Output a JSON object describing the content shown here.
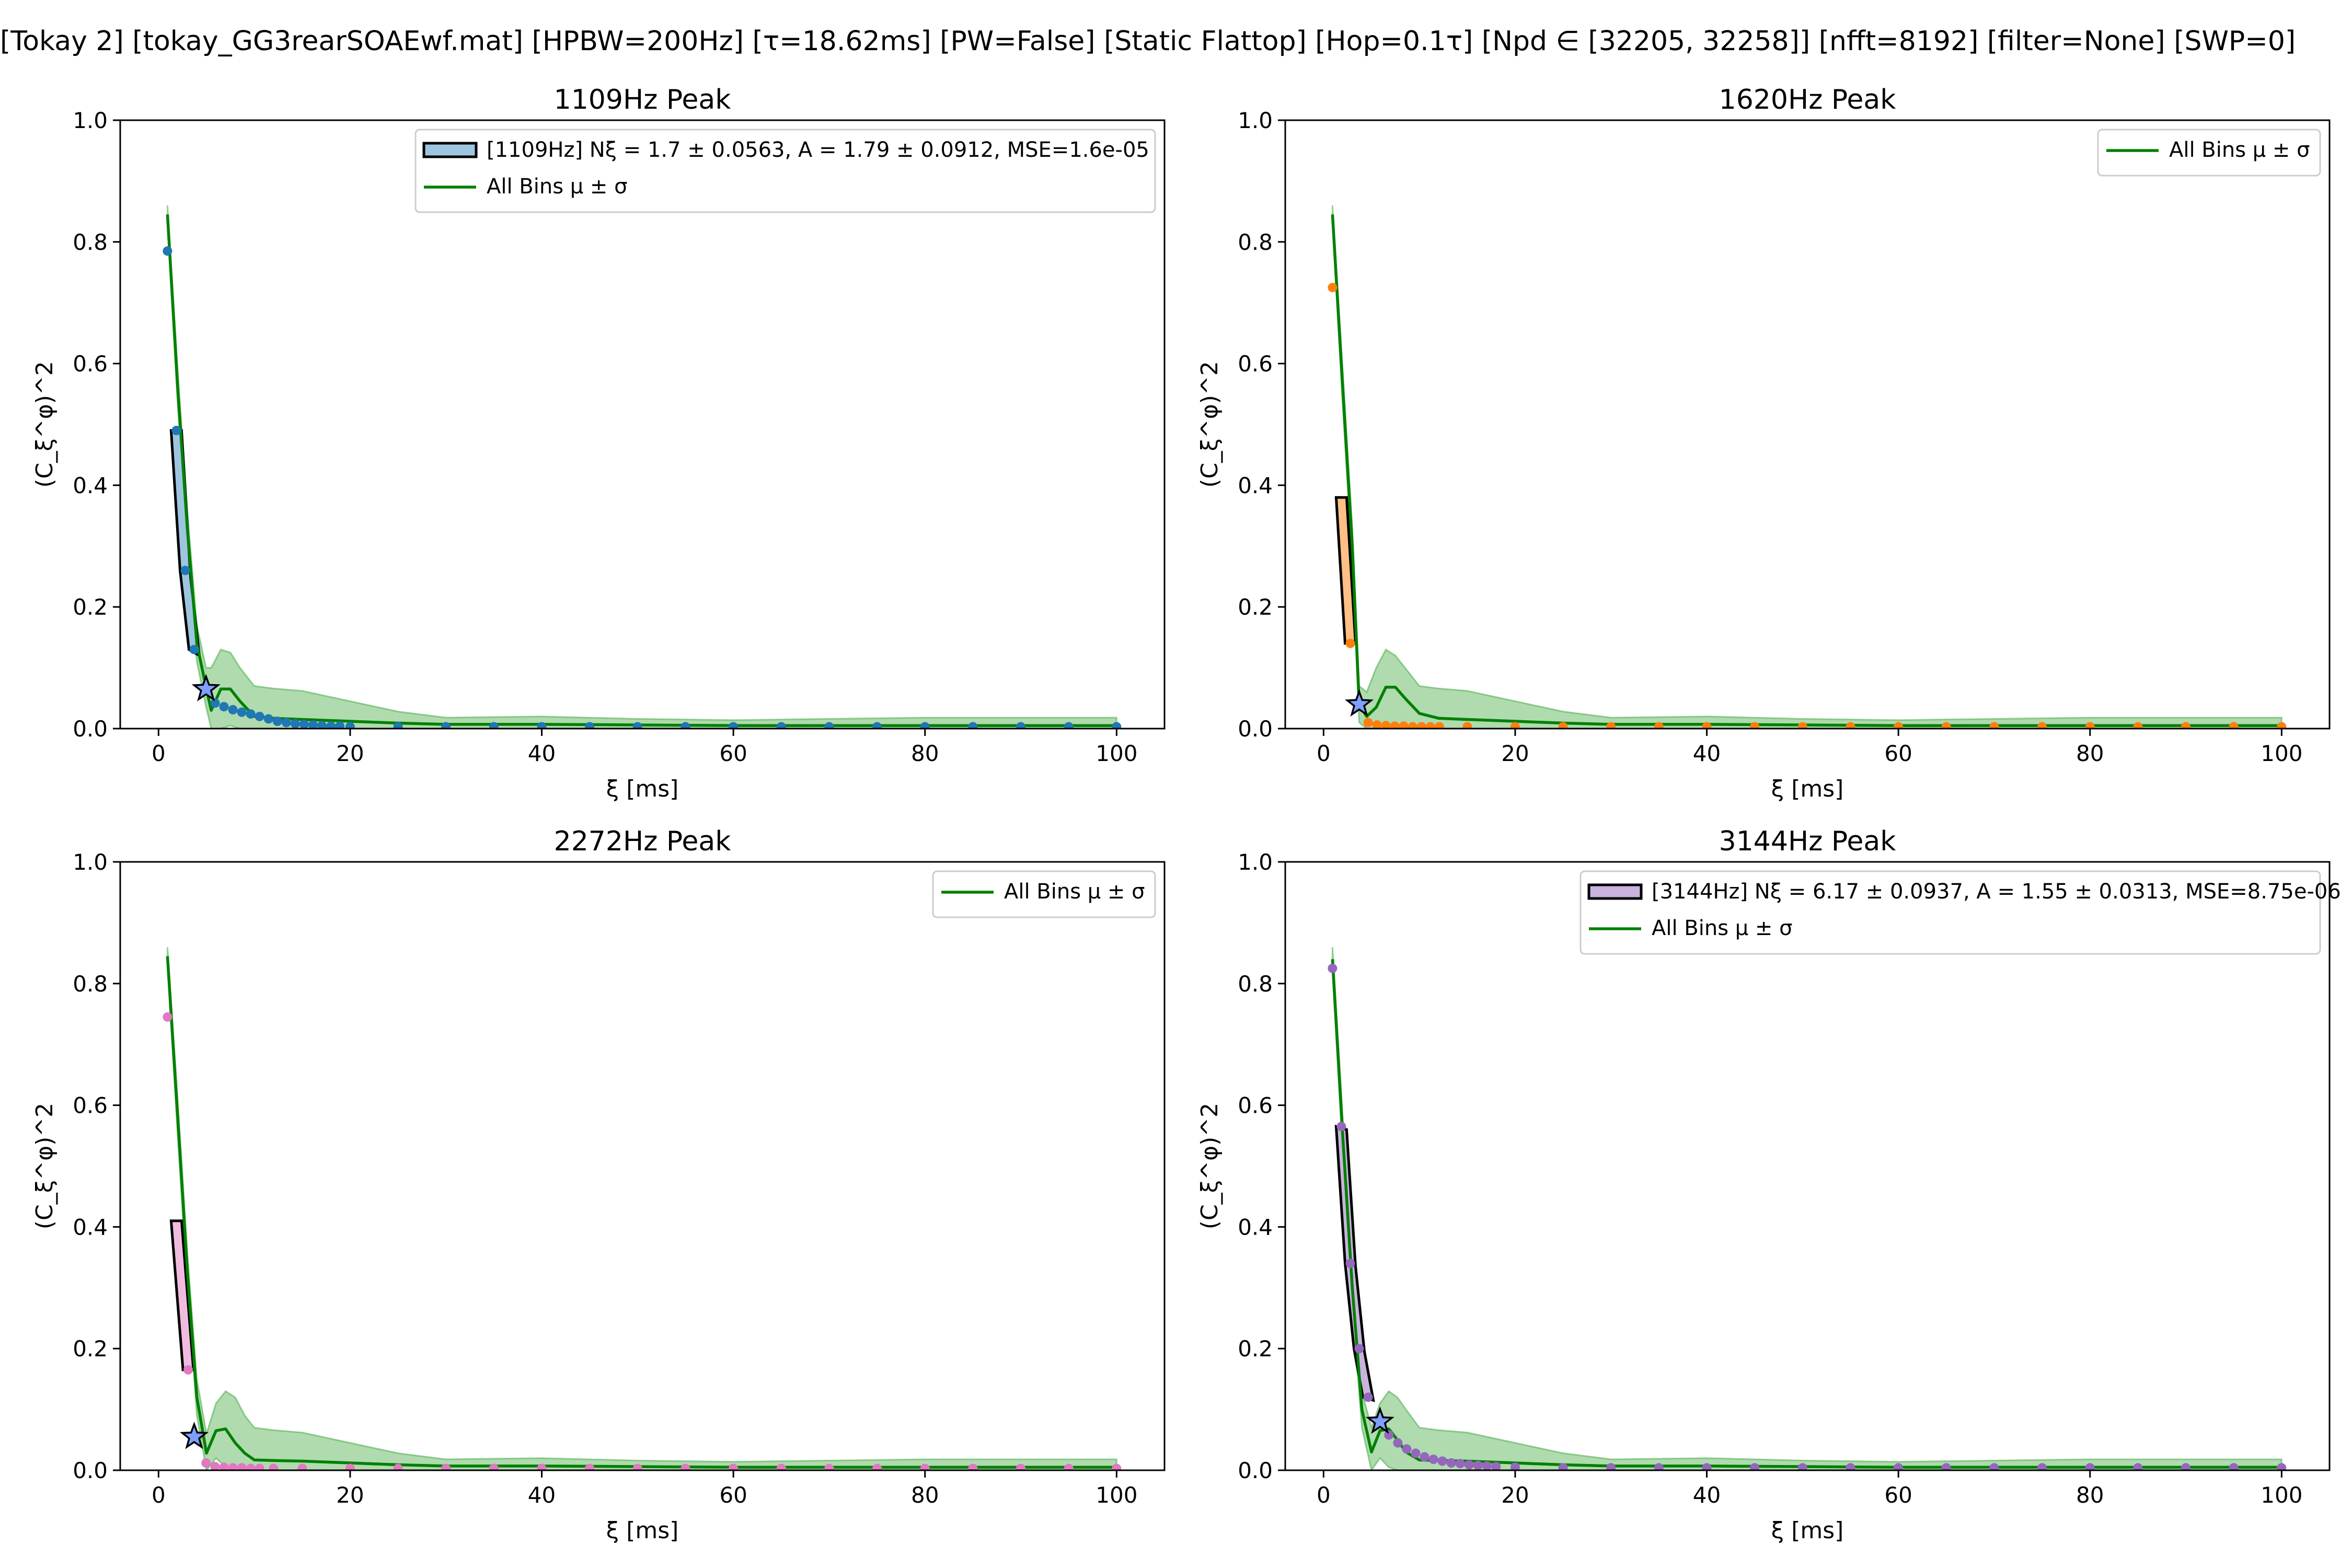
{
  "figure": {
    "suptitle": "[Tokay 2]   [tokay_GG3rearSOAEwf.mat]   [HPBW=200Hz]   [τ=18.62ms]   [PW=False]   [Static Flattop]   [Hop=0.1τ]   [Npd ∈ [32205, 32258]]   [nfft=8192]   [filter=None]   [SWP=0]"
  },
  "colors": {
    "mean_line": "#008000",
    "band_fill": "#2ca02c",
    "star_fill": "#7f9fff"
  },
  "chart_data": [
    {
      "type": "line",
      "title": "1109Hz Peak",
      "xlabel": "ξ [ms]",
      "ylabel": "(C_ξ^φ)^2",
      "xlim": [
        -4,
        105
      ],
      "ylim": [
        0,
        1.0
      ],
      "xticks": [
        0,
        20,
        40,
        60,
        80,
        100
      ],
      "yticks": [
        0.0,
        0.2,
        0.4,
        0.6,
        0.8,
        1.0
      ],
      "xtick_labels": [
        "0",
        "20",
        "40",
        "60",
        "80",
        "100"
      ],
      "ytick_labels": [
        "0.0",
        "0.2",
        "0.4",
        "0.6",
        "0.8",
        "1.0"
      ],
      "legend_position": "top-right",
      "color": "#1f77b4",
      "fit_fill": "#9ec5df",
      "legend": [
        "[1109Hz] Nξ = 1.7 ± 0.0563, A = 1.79 ± 0.0912, MSE=1.6e-05",
        "All Bins μ ± σ"
      ],
      "fit_band": {
        "x": [
          1.86,
          2.79,
          3.72
        ],
        "upper": [
          0.49,
          0.26,
          0.13
        ],
        "lower": [
          0.49,
          0.25,
          0.12
        ]
      },
      "star": {
        "x": 4.96,
        "y": 0.065
      },
      "points": {
        "x": [
          0.93,
          1.86,
          2.79,
          3.72,
          4.96,
          5.9,
          6.83,
          7.76,
          8.69,
          9.62,
          10.55,
          11.48,
          12.41,
          13.34,
          14.27,
          15.2,
          16.13,
          17.06,
          17.99,
          18.92,
          20,
          25,
          30,
          35,
          40,
          45,
          50,
          55,
          60,
          65,
          70,
          75,
          80,
          85,
          90,
          95,
          100
        ],
        "y": [
          0.785,
          0.49,
          0.26,
          0.13,
          0.065,
          0.042,
          0.036,
          0.031,
          0.027,
          0.024,
          0.02,
          0.016,
          0.012,
          0.01,
          0.008,
          0.007,
          0.006,
          0.005,
          0.004,
          0.004,
          0.003,
          0.003,
          0.003,
          0.003,
          0.003,
          0.003,
          0.003,
          0.003,
          0.003,
          0.003,
          0.003,
          0.003,
          0.003,
          0.003,
          0.003,
          0.003,
          0.003
        ]
      },
      "mean": {
        "x": [
          0.93,
          2,
          3,
          4,
          4.96,
          5.5,
          6.5,
          7.5,
          8.5,
          10,
          12,
          15,
          20,
          25,
          30,
          40,
          50,
          60,
          70,
          80,
          90,
          100
        ],
        "y": [
          0.845,
          0.56,
          0.33,
          0.14,
          0.068,
          0.03,
          0.065,
          0.065,
          0.045,
          0.02,
          0.017,
          0.015,
          0.012,
          0.009,
          0.007,
          0.007,
          0.006,
          0.005,
          0.005,
          0.005,
          0.005,
          0.005
        ]
      },
      "band": {
        "x": [
          0.93,
          2,
          3,
          4,
          4.96,
          5.5,
          6.5,
          7.5,
          8.5,
          10,
          12,
          15,
          20,
          25,
          30,
          40,
          50,
          60,
          70,
          80,
          90,
          100
        ],
        "upper": [
          0.86,
          0.59,
          0.36,
          0.17,
          0.1,
          0.1,
          0.13,
          0.125,
          0.1,
          0.07,
          0.066,
          0.062,
          0.045,
          0.028,
          0.018,
          0.02,
          0.016,
          0.014,
          0.016,
          0.018,
          0.018,
          0.018
        ],
        "lower": [
          0.83,
          0.53,
          0.3,
          0.11,
          0.036,
          0.0,
          0.0,
          0.005,
          0.0,
          0.0,
          0.0,
          0.0,
          0.0,
          0.0,
          0.0,
          0.0,
          0.0,
          0.0,
          0.0,
          0.0,
          0.0,
          0.0
        ]
      }
    },
    {
      "type": "line",
      "title": "1620Hz Peak",
      "xlabel": "ξ [ms]",
      "ylabel": "(C_ξ^φ)^2",
      "xlim": [
        -4,
        105
      ],
      "ylim": [
        0,
        1.0
      ],
      "xticks": [
        0,
        20,
        40,
        60,
        80,
        100
      ],
      "yticks": [
        0.0,
        0.2,
        0.4,
        0.6,
        0.8,
        1.0
      ],
      "xtick_labels": [
        "0",
        "20",
        "40",
        "60",
        "80",
        "100"
      ],
      "ytick_labels": [
        "0.0",
        "0.2",
        "0.4",
        "0.6",
        "0.8",
        "1.0"
      ],
      "legend_position": "top-right",
      "color": "#ff7f0e",
      "fit_fill": "#ffbf86",
      "legend": [
        "All Bins μ ± σ"
      ],
      "fit_band": {
        "x": [
          1.86,
          2.79
        ],
        "upper": [
          0.38,
          0.14
        ],
        "lower": [
          0.38,
          0.14
        ]
      },
      "star": {
        "x": 3.72,
        "y": 0.04
      },
      "points": {
        "x": [
          0.93,
          2.79,
          4.65,
          5.58,
          6.51,
          7.44,
          8.37,
          9.3,
          10.23,
          11.16,
          12.09,
          15,
          20,
          25,
          30,
          35,
          40,
          45,
          50,
          55,
          60,
          65,
          70,
          75,
          80,
          85,
          90,
          95,
          100
        ],
        "y": [
          0.725,
          0.14,
          0.01,
          0.006,
          0.005,
          0.004,
          0.004,
          0.003,
          0.003,
          0.003,
          0.003,
          0.003,
          0.003,
          0.003,
          0.003,
          0.003,
          0.003,
          0.003,
          0.003,
          0.003,
          0.003,
          0.003,
          0.003,
          0.003,
          0.003,
          0.003,
          0.003,
          0.003,
          0.003
        ]
      },
      "mean": {
        "x": [
          0.93,
          2,
          3,
          3.72,
          4.5,
          5.5,
          6.5,
          7.5,
          8.5,
          10,
          12,
          15,
          20,
          25,
          30,
          40,
          50,
          60,
          70,
          80,
          90,
          100
        ],
        "y": [
          0.845,
          0.56,
          0.3,
          0.04,
          0.02,
          0.035,
          0.068,
          0.068,
          0.05,
          0.025,
          0.017,
          0.015,
          0.012,
          0.009,
          0.007,
          0.007,
          0.006,
          0.005,
          0.005,
          0.005,
          0.005,
          0.005
        ]
      },
      "band": {
        "x": [
          0.93,
          2,
          3,
          3.72,
          4.5,
          5.5,
          6.5,
          7.5,
          8.5,
          10,
          12,
          15,
          20,
          25,
          30,
          40,
          50,
          60,
          70,
          80,
          90,
          100
        ],
        "upper": [
          0.86,
          0.59,
          0.33,
          0.07,
          0.06,
          0.1,
          0.13,
          0.12,
          0.1,
          0.07,
          0.066,
          0.062,
          0.045,
          0.028,
          0.018,
          0.02,
          0.016,
          0.014,
          0.016,
          0.018,
          0.018,
          0.018
        ],
        "lower": [
          0.83,
          0.53,
          0.27,
          0.01,
          0.0,
          0.0,
          0.0,
          0.01,
          0.0,
          0.0,
          0.0,
          0.0,
          0.0,
          0.0,
          0.0,
          0.0,
          0.0,
          0.0,
          0.0,
          0.0,
          0.0,
          0.0
        ]
      }
    },
    {
      "type": "line",
      "title": "2272Hz Peak",
      "xlabel": "ξ [ms]",
      "ylabel": "(C_ξ^φ)^2",
      "xlim": [
        -4,
        105
      ],
      "ylim": [
        0,
        1.0
      ],
      "xticks": [
        0,
        20,
        40,
        60,
        80,
        100
      ],
      "yticks": [
        0.0,
        0.2,
        0.4,
        0.6,
        0.8,
        1.0
      ],
      "xtick_labels": [
        "0",
        "20",
        "40",
        "60",
        "80",
        "100"
      ],
      "ytick_labels": [
        "0.0",
        "0.2",
        "0.4",
        "0.6",
        "0.8",
        "1.0"
      ],
      "legend_position": "top-right",
      "color": "#e377c2",
      "fit_fill": "#f1bbe0",
      "legend": [
        "All Bins μ ± σ"
      ],
      "fit_band": {
        "x": [
          1.86,
          3.1
        ],
        "upper": [
          0.41,
          0.165
        ],
        "lower": [
          0.41,
          0.165
        ]
      },
      "star": {
        "x": 3.72,
        "y": 0.055
      },
      "points": {
        "x": [
          0.93,
          3.1,
          4.96,
          5.9,
          6.83,
          7.76,
          8.69,
          9.62,
          10.55,
          12,
          15,
          20,
          25,
          30,
          35,
          40,
          45,
          50,
          55,
          60,
          65,
          70,
          75,
          80,
          85,
          90,
          95,
          100
        ],
        "y": [
          0.745,
          0.165,
          0.012,
          0.006,
          0.005,
          0.004,
          0.004,
          0.003,
          0.003,
          0.003,
          0.003,
          0.003,
          0.003,
          0.003,
          0.003,
          0.003,
          0.003,
          0.003,
          0.003,
          0.003,
          0.003,
          0.003,
          0.003,
          0.003,
          0.003,
          0.003,
          0.003,
          0.003
        ]
      },
      "mean": {
        "x": [
          0.93,
          2,
          3,
          4,
          5,
          6,
          7,
          8,
          9,
          10,
          12,
          15,
          20,
          25,
          30,
          40,
          50,
          60,
          70,
          80,
          90,
          100
        ],
        "y": [
          0.845,
          0.58,
          0.33,
          0.12,
          0.028,
          0.065,
          0.068,
          0.045,
          0.028,
          0.017,
          0.016,
          0.015,
          0.012,
          0.009,
          0.007,
          0.007,
          0.006,
          0.005,
          0.005,
          0.005,
          0.005,
          0.005
        ]
      },
      "band": {
        "x": [
          0.93,
          2,
          3,
          4,
          5,
          6,
          7,
          8,
          9,
          10,
          12,
          15,
          20,
          25,
          30,
          40,
          50,
          60,
          70,
          80,
          90,
          100
        ],
        "upper": [
          0.86,
          0.61,
          0.36,
          0.15,
          0.06,
          0.11,
          0.13,
          0.12,
          0.09,
          0.07,
          0.066,
          0.062,
          0.045,
          0.028,
          0.018,
          0.02,
          0.016,
          0.014,
          0.016,
          0.018,
          0.018,
          0.018
        ],
        "lower": [
          0.83,
          0.55,
          0.3,
          0.09,
          0.0,
          0.02,
          0.005,
          0.0,
          0.0,
          0.0,
          0.0,
          0.0,
          0.0,
          0.0,
          0.0,
          0.0,
          0.0,
          0.0,
          0.0,
          0.0,
          0.0,
          0.0
        ]
      }
    },
    {
      "type": "line",
      "title": "3144Hz Peak",
      "xlabel": "ξ [ms]",
      "ylabel": "(C_ξ^φ)^2",
      "xlim": [
        -4,
        105
      ],
      "ylim": [
        0,
        1.0
      ],
      "xticks": [
        0,
        20,
        40,
        60,
        80,
        100
      ],
      "yticks": [
        0.0,
        0.2,
        0.4,
        0.6,
        0.8,
        1.0
      ],
      "xtick_labels": [
        "0",
        "20",
        "40",
        "60",
        "80",
        "100"
      ],
      "ytick_labels": [
        "0.0",
        "0.2",
        "0.4",
        "0.6",
        "0.8",
        "1.0"
      ],
      "legend_position": "top-right",
      "color": "#9467bd",
      "fit_fill": "#c9b3de",
      "legend": [
        "[3144Hz] Nξ = 6.17 ± 0.0937, A = 1.55 ± 0.0313, MSE=8.75e-06",
        "All Bins μ ± σ"
      ],
      "fit_band": {
        "x": [
          1.86,
          2.79,
          3.72,
          4.65
        ],
        "upper": [
          0.565,
          0.34,
          0.2,
          0.12
        ],
        "lower": [
          0.56,
          0.335,
          0.195,
          0.115
        ]
      },
      "star": {
        "x": 5.89,
        "y": 0.08
      },
      "points": {
        "x": [
          0.93,
          1.86,
          2.79,
          3.72,
          4.65,
          5.89,
          6.82,
          7.75,
          8.68,
          9.61,
          10.54,
          11.47,
          12.4,
          13.33,
          14.26,
          15.19,
          16.12,
          17.05,
          18,
          20,
          25,
          30,
          35,
          40,
          45,
          50,
          55,
          60,
          65,
          70,
          75,
          80,
          85,
          90,
          95,
          100
        ],
        "y": [
          0.825,
          0.565,
          0.34,
          0.2,
          0.12,
          0.08,
          0.058,
          0.045,
          0.035,
          0.028,
          0.022,
          0.018,
          0.015,
          0.012,
          0.011,
          0.009,
          0.008,
          0.007,
          0.006,
          0.005,
          0.004,
          0.004,
          0.004,
          0.004,
          0.004,
          0.004,
          0.004,
          0.004,
          0.004,
          0.004,
          0.004,
          0.004,
          0.004,
          0.004,
          0.004,
          0.004
        ]
      },
      "mean": {
        "x": [
          0.93,
          2,
          3,
          4,
          5,
          5.89,
          6.8,
          7.7,
          8.6,
          10,
          12,
          15,
          20,
          25,
          30,
          40,
          50,
          60,
          70,
          80,
          90,
          100
        ],
        "y": [
          0.84,
          0.55,
          0.3,
          0.1,
          0.03,
          0.065,
          0.068,
          0.05,
          0.03,
          0.017,
          0.016,
          0.015,
          0.012,
          0.009,
          0.007,
          0.007,
          0.006,
          0.005,
          0.005,
          0.005,
          0.005,
          0.005
        ]
      },
      "band": {
        "x": [
          0.93,
          2,
          3,
          4,
          5,
          5.89,
          6.8,
          7.7,
          8.6,
          10,
          12,
          15,
          20,
          25,
          30,
          40,
          50,
          60,
          70,
          80,
          90,
          100
        ],
        "upper": [
          0.86,
          0.58,
          0.33,
          0.13,
          0.07,
          0.11,
          0.13,
          0.12,
          0.1,
          0.07,
          0.066,
          0.062,
          0.045,
          0.028,
          0.018,
          0.02,
          0.016,
          0.014,
          0.016,
          0.018,
          0.018,
          0.018
        ],
        "lower": [
          0.82,
          0.52,
          0.27,
          0.07,
          0.0,
          0.02,
          0.005,
          0.0,
          0.0,
          0.0,
          0.0,
          0.0,
          0.0,
          0.0,
          0.0,
          0.0,
          0.0,
          0.0,
          0.0,
          0.0,
          0.0,
          0.0
        ]
      }
    }
  ]
}
